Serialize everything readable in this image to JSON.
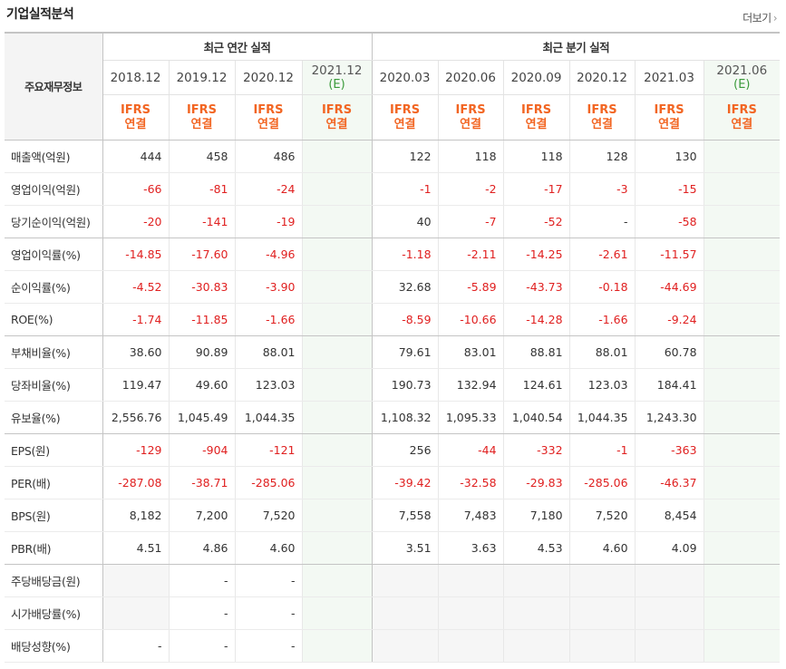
{
  "section_title": "기업실적분석",
  "more_label": "더보기",
  "more_arrow": "›",
  "header": {
    "row_label": "주요재무정보",
    "annual_group": "최근 연간 실적",
    "quarter_group": "최근 분기 실적",
    "ifrs_top": "IFRS",
    "ifrs_bottom": "연결",
    "annual_periods": [
      {
        "label": "2018.12",
        "est": ""
      },
      {
        "label": "2019.12",
        "est": ""
      },
      {
        "label": "2020.12",
        "est": ""
      },
      {
        "label": "2021.12",
        "est": "(E)"
      }
    ],
    "quarter_periods": [
      {
        "label": "2020.03",
        "est": ""
      },
      {
        "label": "2020.06",
        "est": ""
      },
      {
        "label": "2020.09",
        "est": ""
      },
      {
        "label": "2020.12",
        "est": ""
      },
      {
        "label": "2021.03",
        "est": ""
      },
      {
        "label": "2021.06",
        "est": "(E)"
      }
    ]
  },
  "rows": [
    {
      "label": "매출액(억원)",
      "values": [
        "444",
        "458",
        "486",
        "",
        "122",
        "118",
        "118",
        "128",
        "130",
        ""
      ]
    },
    {
      "label": "영업이익(억원)",
      "values": [
        "-66",
        "-81",
        "-24",
        "",
        "-1",
        "-2",
        "-17",
        "-3",
        "-15",
        ""
      ]
    },
    {
      "label": "당기순이익(억원)",
      "values": [
        "-20",
        "-141",
        "-19",
        "",
        "40",
        "-7",
        "-52",
        "-",
        "-58",
        ""
      ]
    },
    {
      "label": "영업이익률(%)",
      "values": [
        "-14.85",
        "-17.60",
        "-4.96",
        "",
        "-1.18",
        "-2.11",
        "-14.25",
        "-2.61",
        "-11.57",
        ""
      ]
    },
    {
      "label": "순이익률(%)",
      "values": [
        "-4.52",
        "-30.83",
        "-3.90",
        "",
        "32.68",
        "-5.89",
        "-43.73",
        "-0.18",
        "-44.69",
        ""
      ]
    },
    {
      "label": "ROE(%)",
      "values": [
        "-1.74",
        "-11.85",
        "-1.66",
        "",
        "-8.59",
        "-10.66",
        "-14.28",
        "-1.66",
        "-9.24",
        ""
      ]
    },
    {
      "label": "부채비율(%)",
      "values": [
        "38.60",
        "90.89",
        "88.01",
        "",
        "79.61",
        "83.01",
        "88.81",
        "88.01",
        "60.78",
        ""
      ]
    },
    {
      "label": "당좌비율(%)",
      "values": [
        "119.47",
        "49.60",
        "123.03",
        "",
        "190.73",
        "132.94",
        "124.61",
        "123.03",
        "184.41",
        ""
      ]
    },
    {
      "label": "유보율(%)",
      "values": [
        "2,556.76",
        "1,045.49",
        "1,044.35",
        "",
        "1,108.32",
        "1,095.33",
        "1,040.54",
        "1,044.35",
        "1,243.30",
        ""
      ]
    },
    {
      "label": "EPS(원)",
      "values": [
        "-129",
        "-904",
        "-121",
        "",
        "256",
        "-44",
        "-332",
        "-1",
        "-363",
        ""
      ]
    },
    {
      "label": "PER(배)",
      "values": [
        "-287.08",
        "-38.71",
        "-285.06",
        "",
        "-39.42",
        "-32.58",
        "-29.83",
        "-285.06",
        "-46.37",
        ""
      ]
    },
    {
      "label": "BPS(원)",
      "values": [
        "8,182",
        "7,200",
        "7,520",
        "",
        "7,558",
        "7,483",
        "7,180",
        "7,520",
        "8,454",
        ""
      ]
    },
    {
      "label": "PBR(배)",
      "values": [
        "4.51",
        "4.86",
        "4.60",
        "",
        "3.51",
        "3.63",
        "4.53",
        "4.60",
        "4.09",
        ""
      ]
    },
    {
      "label": "주당배당금(원)",
      "values": [
        "",
        "-",
        "-",
        "",
        "",
        "",
        "",
        "",
        "",
        ""
      ]
    },
    {
      "label": "시가배당률(%)",
      "values": [
        "",
        "-",
        "-",
        "",
        "",
        "",
        "",
        "",
        "",
        ""
      ]
    },
    {
      "label": "배당성향(%)",
      "values": [
        "-",
        "-",
        "-",
        "",
        "",
        "",
        "",
        "",
        "",
        ""
      ]
    }
  ],
  "colors": {
    "negative": "#e02020",
    "ifrs": "#f26522",
    "estimate_bg": "#f3f9f3",
    "estimate_text": "#3a9a3a"
  }
}
